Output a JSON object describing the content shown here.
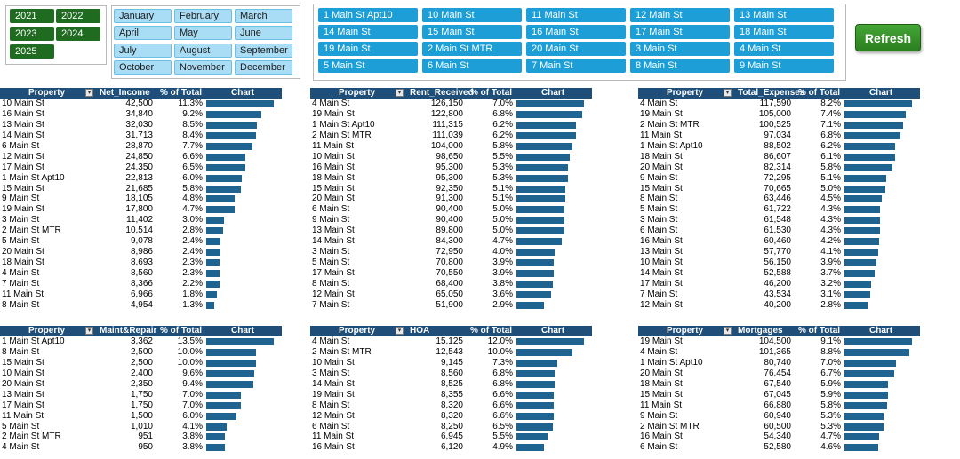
{
  "year_slicer": [
    "2021",
    "2022",
    "2023",
    "2024",
    "2025"
  ],
  "month_slicer": [
    "January",
    "February",
    "March",
    "April",
    "May",
    "June",
    "July",
    "August",
    "September",
    "October",
    "November",
    "December"
  ],
  "property_slicer": [
    "1 Main St Apt10",
    "10 Main St",
    "11 Main St",
    "12 Main St",
    "13 Main St",
    "14 Main St",
    "15 Main St",
    "16 Main St",
    "17 Main St",
    "18 Main St",
    "19 Main St",
    "2 Main St MTR",
    "20 Main St",
    "3 Main St",
    "4 Main St",
    "5 Main St",
    "6 Main St",
    "7 Main St",
    "8 Main St",
    "9 Main St"
  ],
  "refresh_label": "Refresh",
  "tables": [
    {
      "headers": [
        "Property",
        "Net_Income",
        "% of Total",
        "Chart"
      ],
      "max_pct": 11.3,
      "rows": [
        [
          "10 Main St",
          "42,500",
          "11.3%",
          11.3
        ],
        [
          "16 Main St",
          "34,840",
          "9.2%",
          9.2
        ],
        [
          "13 Main St",
          "32,030",
          "8.5%",
          8.5
        ],
        [
          "14 Main St",
          "31,713",
          "8.4%",
          8.4
        ],
        [
          "6 Main St",
          "28,870",
          "7.7%",
          7.7
        ],
        [
          "12 Main St",
          "24,850",
          "6.6%",
          6.6
        ],
        [
          "17 Main St",
          "24,350",
          "6.5%",
          6.5
        ],
        [
          "1 Main St Apt10",
          "22,813",
          "6.0%",
          6.0
        ],
        [
          "15 Main St",
          "21,685",
          "5.8%",
          5.8
        ],
        [
          "9 Main St",
          "18,105",
          "4.8%",
          4.8
        ],
        [
          "19 Main St",
          "17,800",
          "4.7%",
          4.7
        ],
        [
          "3 Main St",
          "11,402",
          "3.0%",
          3.0
        ],
        [
          "2 Main St MTR",
          "10,514",
          "2.8%",
          2.8
        ],
        [
          "5 Main St",
          "9,078",
          "2.4%",
          2.4
        ],
        [
          "20 Main St",
          "8,986",
          "2.4%",
          2.4
        ],
        [
          "18 Main St",
          "8,693",
          "2.3%",
          2.3
        ],
        [
          "4 Main St",
          "8,560",
          "2.3%",
          2.3
        ],
        [
          "7 Main St",
          "8,366",
          "2.2%",
          2.2
        ],
        [
          "11 Main St",
          "6,966",
          "1.8%",
          1.8
        ],
        [
          "8 Main St",
          "4,954",
          "1.3%",
          1.3
        ]
      ]
    },
    {
      "headers": [
        "Property",
        "Rent_Received",
        "% of Total",
        "Chart"
      ],
      "max_pct": 7.0,
      "rows": [
        [
          "4 Main St",
          "126,150",
          "7.0%",
          7.0
        ],
        [
          "19 Main St",
          "122,800",
          "6.8%",
          6.8
        ],
        [
          "1 Main St Apt10",
          "111,315",
          "6.2%",
          6.2
        ],
        [
          "2 Main St MTR",
          "111,039",
          "6.2%",
          6.2
        ],
        [
          "11 Main St",
          "104,000",
          "5.8%",
          5.8
        ],
        [
          "10 Main St",
          "98,650",
          "5.5%",
          5.5
        ],
        [
          "16 Main St",
          "95,300",
          "5.3%",
          5.3
        ],
        [
          "18 Main St",
          "95,300",
          "5.3%",
          5.3
        ],
        [
          "15 Main St",
          "92,350",
          "5.1%",
          5.1
        ],
        [
          "20 Main St",
          "91,300",
          "5.1%",
          5.1
        ],
        [
          "6 Main St",
          "90,400",
          "5.0%",
          5.0
        ],
        [
          "9 Main St",
          "90,400",
          "5.0%",
          5.0
        ],
        [
          "13 Main St",
          "89,800",
          "5.0%",
          5.0
        ],
        [
          "14 Main St",
          "84,300",
          "4.7%",
          4.7
        ],
        [
          "3 Main St",
          "72,950",
          "4.0%",
          4.0
        ],
        [
          "5 Main St",
          "70,800",
          "3.9%",
          3.9
        ],
        [
          "17 Main St",
          "70,550",
          "3.9%",
          3.9
        ],
        [
          "8 Main St",
          "68,400",
          "3.8%",
          3.8
        ],
        [
          "12 Main St",
          "65,050",
          "3.6%",
          3.6
        ],
        [
          "7 Main St",
          "51,900",
          "2.9%",
          2.9
        ]
      ]
    },
    {
      "headers": [
        "Property",
        "Total_Expenses",
        "% of Total",
        "Chart"
      ],
      "max_pct": 8.2,
      "rows": [
        [
          "4 Main St",
          "117,590",
          "8.2%",
          8.2
        ],
        [
          "19 Main St",
          "105,000",
          "7.4%",
          7.4
        ],
        [
          "2 Main St MTR",
          "100,525",
          "7.1%",
          7.1
        ],
        [
          "11 Main St",
          "97,034",
          "6.8%",
          6.8
        ],
        [
          "1 Main St Apt10",
          "88,502",
          "6.2%",
          6.2
        ],
        [
          "18 Main St",
          "86,607",
          "6.1%",
          6.1
        ],
        [
          "20 Main St",
          "82,314",
          "5.8%",
          5.8
        ],
        [
          "9 Main St",
          "72,295",
          "5.1%",
          5.1
        ],
        [
          "15 Main St",
          "70,665",
          "5.0%",
          5.0
        ],
        [
          "8 Main St",
          "63,446",
          "4.5%",
          4.5
        ],
        [
          "5 Main St",
          "61,722",
          "4.3%",
          4.3
        ],
        [
          "3 Main St",
          "61,548",
          "4.3%",
          4.3
        ],
        [
          "6 Main St",
          "61,530",
          "4.3%",
          4.3
        ],
        [
          "16 Main St",
          "60,460",
          "4.2%",
          4.2
        ],
        [
          "13 Main St",
          "57,770",
          "4.1%",
          4.1
        ],
        [
          "10 Main St",
          "56,150",
          "3.9%",
          3.9
        ],
        [
          "14 Main St",
          "52,588",
          "3.7%",
          3.7
        ],
        [
          "17 Main St",
          "46,200",
          "3.2%",
          3.2
        ],
        [
          "7 Main St",
          "43,534",
          "3.1%",
          3.1
        ],
        [
          "12 Main St",
          "40,200",
          "2.8%",
          2.8
        ]
      ]
    },
    {
      "headers": [
        "Property",
        "Maint&Repair",
        "% of Total",
        "Chart"
      ],
      "max_pct": 13.5,
      "rows": [
        [
          "1 Main St Apt10",
          "3,362",
          "13.5%",
          13.5
        ],
        [
          "8 Main St",
          "2,500",
          "10.0%",
          10.0
        ],
        [
          "15 Main St",
          "2,500",
          "10.0%",
          10.0
        ],
        [
          "10 Main St",
          "2,400",
          "9.6%",
          9.6
        ],
        [
          "20 Main St",
          "2,350",
          "9.4%",
          9.4
        ],
        [
          "13 Main St",
          "1,750",
          "7.0%",
          7.0
        ],
        [
          "17 Main St",
          "1,750",
          "7.0%",
          7.0
        ],
        [
          "11 Main St",
          "1,500",
          "6.0%",
          6.0
        ],
        [
          "5 Main St",
          "1,010",
          "4.1%",
          4.1
        ],
        [
          "2 Main St MTR",
          "951",
          "3.8%",
          3.8
        ],
        [
          "4 Main St",
          "950",
          "3.8%",
          3.8
        ]
      ]
    },
    {
      "headers": [
        "Property",
        "HOA",
        "% of Total",
        "Chart"
      ],
      "max_pct": 12.0,
      "rows": [
        [
          "4 Main St",
          "15,125",
          "12.0%",
          12.0
        ],
        [
          "2 Main St MTR",
          "12,543",
          "10.0%",
          10.0
        ],
        [
          "10 Main St",
          "9,145",
          "7.3%",
          7.3
        ],
        [
          "3 Main St",
          "8,560",
          "6.8%",
          6.8
        ],
        [
          "14 Main St",
          "8,525",
          "6.8%",
          6.8
        ],
        [
          "19 Main St",
          "8,355",
          "6.6%",
          6.6
        ],
        [
          "8 Main St",
          "8,320",
          "6.6%",
          6.6
        ],
        [
          "12 Main St",
          "8,320",
          "6.6%",
          6.6
        ],
        [
          "6 Main St",
          "8,250",
          "6.5%",
          6.5
        ],
        [
          "11 Main St",
          "6,945",
          "5.5%",
          5.5
        ],
        [
          "16 Main St",
          "6,120",
          "4.9%",
          4.9
        ]
      ]
    },
    {
      "headers": [
        "Property",
        "Mortgages",
        "% of Total",
        "Chart"
      ],
      "max_pct": 9.1,
      "rows": [
        [
          "19 Main St",
          "104,500",
          "9.1%",
          9.1
        ],
        [
          "4 Main St",
          "101,365",
          "8.8%",
          8.8
        ],
        [
          "1 Main St Apt10",
          "80,740",
          "7.0%",
          7.0
        ],
        [
          "20 Main St",
          "76,454",
          "6.7%",
          6.7
        ],
        [
          "18 Main St",
          "67,540",
          "5.9%",
          5.9
        ],
        [
          "15 Main St",
          "67,045",
          "5.9%",
          5.9
        ],
        [
          "11 Main St",
          "66,880",
          "5.8%",
          5.8
        ],
        [
          "9 Main St",
          "60,940",
          "5.3%",
          5.3
        ],
        [
          "2 Main St MTR",
          "60,500",
          "5.3%",
          5.3
        ],
        [
          "16 Main St",
          "54,340",
          "4.7%",
          4.7
        ],
        [
          "6 Main St",
          "52,580",
          "4.6%",
          4.6
        ]
      ]
    }
  ],
  "colors": {
    "header": "#1f4e79",
    "bar": "#1f6391",
    "year_button": "#1f6b20",
    "month_button": "#a9ddf5",
    "property_button": "#1e9ed6",
    "refresh": "#2b7f1f"
  }
}
